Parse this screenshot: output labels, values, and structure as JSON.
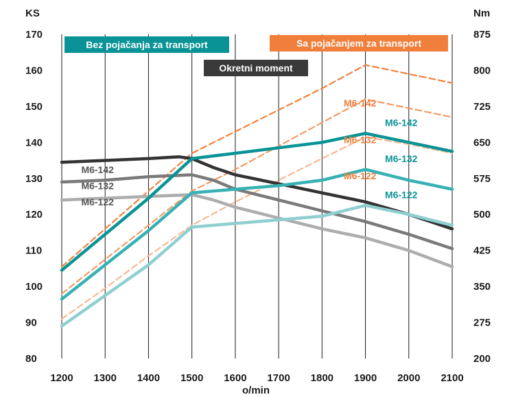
{
  "chart_data": {
    "type": "line",
    "left_unit": "KS",
    "right_unit": "Nm",
    "xlabel": "o/min",
    "x": [
      1200,
      1300,
      1400,
      1500,
      1600,
      1700,
      1800,
      1900,
      2000,
      2100
    ],
    "xlim": [
      1200,
      2100
    ],
    "ylim_left": [
      80,
      170
    ],
    "ylim_right": [
      200,
      875
    ],
    "yticks_left": [
      80,
      90,
      100,
      110,
      120,
      130,
      140,
      150,
      160,
      170
    ],
    "yticks_right": [
      200,
      275,
      350,
      425,
      500,
      575,
      650,
      725,
      800,
      875
    ],
    "grid": "vertical",
    "legend": [
      {
        "label": "Bez pojačanja za transport",
        "color": "#0a9396",
        "position": "top-left"
      },
      {
        "label": "Sa pojačanjem za transport",
        "color": "#f07f3c",
        "position": "top-right"
      },
      {
        "label": "Okretni moment",
        "color": "#3a3a3a",
        "position": "top-center"
      }
    ],
    "colors": {
      "teal": "#0a9396",
      "orange": "#f07f3c",
      "dark_gray": "#333333"
    },
    "series": [
      {
        "group": "power_no_boost",
        "name": "M6-142",
        "color": "#0a9396",
        "style": "solid",
        "points": [
          [
            1200,
            104.5
          ],
          [
            1300,
            114.5
          ],
          [
            1400,
            124.5
          ],
          [
            1500,
            135.5
          ],
          [
            1600,
            137
          ],
          [
            1700,
            138.5
          ],
          [
            1800,
            140
          ],
          [
            1900,
            142.5
          ],
          [
            2000,
            140
          ],
          [
            2100,
            137.5
          ]
        ]
      },
      {
        "group": "power_no_boost",
        "name": "M6-132",
        "color": "#37b1b3",
        "style": "solid",
        "points": [
          [
            1200,
            96.5
          ],
          [
            1300,
            106
          ],
          [
            1400,
            115.5
          ],
          [
            1500,
            126
          ],
          [
            1600,
            127
          ],
          [
            1700,
            128
          ],
          [
            1800,
            129.5
          ],
          [
            1900,
            132.5
          ],
          [
            2000,
            129.5
          ],
          [
            2100,
            127
          ]
        ]
      },
      {
        "group": "power_no_boost",
        "name": "M6-122",
        "color": "#8fcfd1",
        "style": "solid",
        "points": [
          [
            1200,
            89
          ],
          [
            1300,
            97.5
          ],
          [
            1400,
            106
          ],
          [
            1500,
            116.5
          ],
          [
            1600,
            117.5
          ],
          [
            1700,
            118.5
          ],
          [
            1800,
            119.5
          ],
          [
            1900,
            122.5
          ],
          [
            2000,
            120
          ],
          [
            2100,
            117
          ]
        ]
      },
      {
        "group": "power_boost",
        "name": "M6-142",
        "color": "#f07f3c",
        "style": "dashed",
        "points": [
          [
            1200,
            105.5
          ],
          [
            1300,
            116
          ],
          [
            1400,
            126.5
          ],
          [
            1500,
            137
          ],
          [
            1600,
            143
          ],
          [
            1700,
            149
          ],
          [
            1800,
            155
          ],
          [
            1900,
            161.5
          ],
          [
            2000,
            159
          ],
          [
            2100,
            156.5
          ]
        ]
      },
      {
        "group": "power_boost",
        "name": "M6-132",
        "color": "#f39a64",
        "style": "dashed",
        "points": [
          [
            1200,
            98
          ],
          [
            1300,
            107.5
          ],
          [
            1400,
            117
          ],
          [
            1500,
            126.5
          ],
          [
            1600,
            132.5
          ],
          [
            1700,
            139
          ],
          [
            1800,
            145.5
          ],
          [
            1900,
            152
          ],
          [
            2000,
            149.5
          ],
          [
            2100,
            147
          ]
        ]
      },
      {
        "group": "power_boost",
        "name": "M6-122",
        "color": "#f7b992",
        "style": "dashed",
        "points": [
          [
            1200,
            91
          ],
          [
            1300,
            99.5
          ],
          [
            1400,
            108.5
          ],
          [
            1500,
            117
          ],
          [
            1600,
            123.5
          ],
          [
            1700,
            129.5
          ],
          [
            1800,
            135.5
          ],
          [
            1900,
            141.5
          ],
          [
            2000,
            139.5
          ],
          [
            2100,
            137
          ]
        ]
      },
      {
        "group": "torque",
        "name": "M6-142",
        "color": "#333333",
        "style": "solid",
        "points": [
          [
            1200,
            134.5
          ],
          [
            1300,
            135
          ],
          [
            1400,
            135.5
          ],
          [
            1470,
            136
          ],
          [
            1500,
            135.5
          ],
          [
            1550,
            133
          ],
          [
            1600,
            131
          ],
          [
            1700,
            128.5
          ],
          [
            1800,
            126
          ],
          [
            1900,
            123.5
          ],
          [
            2000,
            120
          ],
          [
            2100,
            116
          ]
        ]
      },
      {
        "group": "torque",
        "name": "M6-132",
        "color": "#7a7a7a",
        "style": "solid",
        "points": [
          [
            1200,
            129
          ],
          [
            1300,
            129.5
          ],
          [
            1400,
            130.5
          ],
          [
            1500,
            131
          ],
          [
            1550,
            129.5
          ],
          [
            1600,
            127
          ],
          [
            1700,
            124
          ],
          [
            1800,
            121
          ],
          [
            1900,
            118
          ],
          [
            2000,
            114.5
          ],
          [
            2100,
            110.5
          ]
        ]
      },
      {
        "group": "torque",
        "name": "M6-122",
        "color": "#adadad",
        "style": "solid",
        "points": [
          [
            1200,
            124
          ],
          [
            1300,
            124.5
          ],
          [
            1400,
            125
          ],
          [
            1500,
            125.5
          ],
          [
            1550,
            124
          ],
          [
            1600,
            122
          ],
          [
            1700,
            119
          ],
          [
            1800,
            116
          ],
          [
            1900,
            113.5
          ],
          [
            2000,
            110
          ],
          [
            2100,
            105.5
          ]
        ]
      }
    ],
    "series_labels": [
      {
        "text": "M6-142",
        "color": "#f07f3c",
        "x": 1850,
        "y": 150
      },
      {
        "text": "M6-132",
        "color": "#f07f3c",
        "x": 1850,
        "y": 139.8
      },
      {
        "text": "M6-122",
        "color": "#f07f3c",
        "x": 1850,
        "y": 129.8
      },
      {
        "text": "M6-142",
        "color": "#0a9396",
        "x": 1945,
        "y": 144.5
      },
      {
        "text": "M6-132",
        "color": "#0a9396",
        "x": 1945,
        "y": 134.5
      },
      {
        "text": "M6-122",
        "color": "#0a9396",
        "x": 1945,
        "y": 124.5
      },
      {
        "text": "M6-142",
        "color": "#555555",
        "x": 1245,
        "y": 131.5
      },
      {
        "text": "M6-132",
        "color": "#555555",
        "x": 1245,
        "y": 127.0
      },
      {
        "text": "M6-122",
        "color": "#555555",
        "x": 1245,
        "y": 122.5
      }
    ]
  }
}
